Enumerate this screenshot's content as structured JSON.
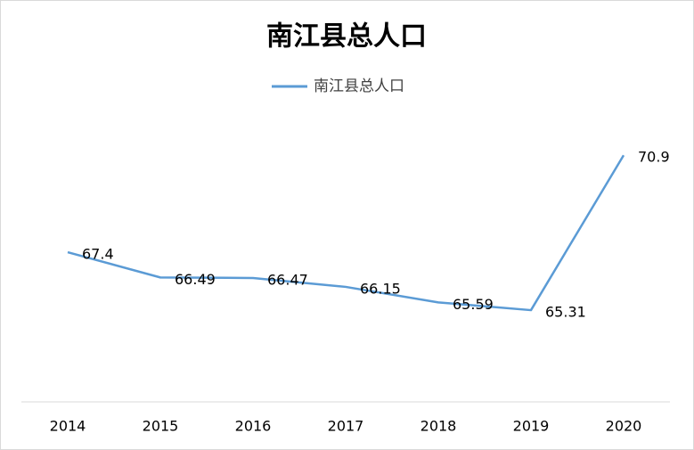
{
  "chart_data": {
    "type": "line",
    "title": "南江县总人口",
    "categories": [
      "2014",
      "2015",
      "2016",
      "2017",
      "2018",
      "2019",
      "2020"
    ],
    "series": [
      {
        "name": "南江县总人口",
        "color": "#5b9bd5",
        "values": [
          67.4,
          66.49,
          66.47,
          66.15,
          65.59,
          65.31,
          70.9
        ]
      }
    ],
    "ylim": [
      62,
      72
    ],
    "data_labels": true,
    "legend": "top"
  }
}
